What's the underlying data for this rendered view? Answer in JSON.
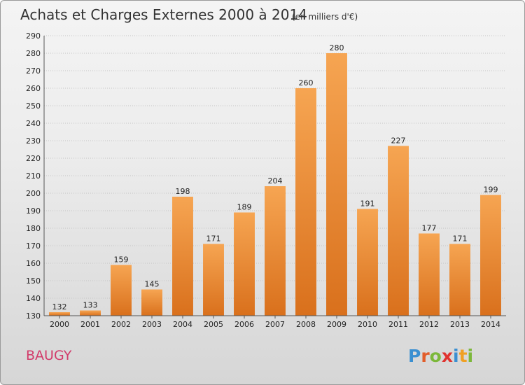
{
  "header": {
    "title": "Achats et Charges Externes 2000 à 2014",
    "unit": "(en milliers d'€)"
  },
  "footer": {
    "city": "BAUGY",
    "brand": {
      "letters": [
        "P",
        "r",
        "o",
        "x",
        "i",
        "t",
        "i"
      ],
      "colors": [
        "#3a8fd1",
        "#e25d2a",
        "#7cb83a",
        "#e0332f",
        "#3a8fd1",
        "#f0a023",
        "#7cb83a"
      ]
    }
  },
  "chart_data": {
    "type": "bar",
    "title": "Achats et Charges Externes 2000 à 2014",
    "subtitle": "(en milliers d'€)",
    "categories": [
      "2000",
      "2001",
      "2002",
      "2003",
      "2004",
      "2005",
      "2006",
      "2007",
      "2008",
      "2009",
      "2010",
      "2011",
      "2012",
      "2013",
      "2014"
    ],
    "values": [
      132,
      133,
      159,
      145,
      198,
      171,
      189,
      204,
      260,
      280,
      191,
      227,
      177,
      171,
      199
    ],
    "ylim": [
      130,
      290
    ],
    "yticks": [
      130,
      140,
      150,
      160,
      170,
      180,
      190,
      200,
      210,
      220,
      230,
      240,
      250,
      260,
      270,
      280,
      290
    ],
    "grid": true,
    "bar_color_top": "#f6a552",
    "bar_color_bottom": "#d9701c"
  }
}
